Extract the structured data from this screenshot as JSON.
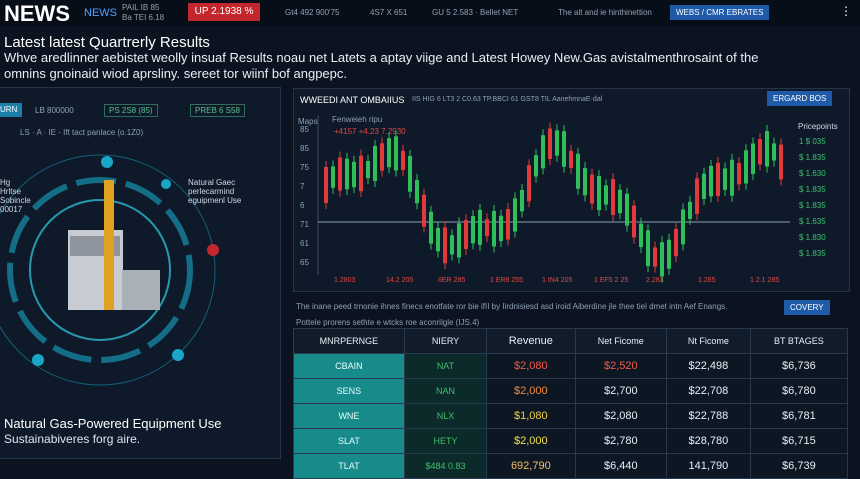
{
  "header": {
    "logo": "NEWS",
    "nav": "NEWS",
    "tickers": [
      "PAIL IB 85",
      "Ba TEI 6.18",
      "Gt4 492 900'75",
      "4S7 X 651",
      "GU 5 2.583 · Bellet NET",
      "The alt and ie hinthinettion"
    ],
    "alert": "UP 2.1938 %",
    "button": "WEBS / CMR EBRATES"
  },
  "headline": {
    "title": "Latest latest Quartrerly Results",
    "lines": [
      "Whve aredlinner aebistet weolly insuaf Results noau net Latets a aptay viige and Latest Howey New.Gas avistalmenthrosaint of the",
      "omnins gnoinaid wiod aprsliny. sereet tor wiinf bof angpepc."
    ]
  },
  "left_panel": {
    "tabs": [
      "URN",
      "LB 800000",
      "PS 2S8 (85)",
      "PREB 6 S58"
    ],
    "info": "LS · A · IE · Ift tact panlace (o.1Z0)",
    "callouts": [
      "Natural Gaec perlecarmind eguipmenl Use",
      "Hg Hrltse Sobincle 00017"
    ],
    "caption": "Natural Gas-Powered Equipment Use",
    "subcaption": "Sustainabiveres forg aire."
  },
  "chart_panel": {
    "title": "WWEEDI ANT OMBAIIUS",
    "info": "IIS HIG 6 LT3 2 C0.63 TP.BBCI 61 GST8 TIL AanehmnaE·dal",
    "button": "ERGARD BOS",
    "axis_title": "Maps",
    "legend": "Fenweieh ripu",
    "legend_values": "+4157 +4.23 7.2930",
    "y_labels": [
      "85",
      "85",
      "75",
      "7",
      "6",
      "71",
      "61",
      "65"
    ],
    "x_labels": [
      "1.2803",
      "14.2 205",
      "IIER 285",
      "1 ER8 255",
      "1 IN4 205",
      "1 EF5 2 25",
      "2.283",
      "1.285",
      "1 2.1 285"
    ],
    "side_title": "Pricepoints",
    "side_labels": [
      "1 $ 035",
      "$ 1.835",
      "$ 1.630",
      "$ 1.835",
      "$ 1.835",
      "$ 1.635",
      "$ 1.830",
      "$ 1.835"
    ],
    "note": "The inane peed trnonie ihnes finecs enotfate ror bie ifII by Iirdnisiesd asd iroid Aiberdine jle thee tiel dmet intn Aef Enangs.",
    "note2": "Pottele prorens sethte e wtcks roe aconrilgle (IJS.4)",
    "note_button": "COVERY"
  },
  "table": {
    "columns": [
      "MNRPERNGE",
      "NIERY",
      "Revenue",
      "Net Ficome",
      "Nt Ficome",
      "BT BTAGES"
    ],
    "rows": [
      [
        "CBAIN",
        "NAT",
        "$2,080",
        "$2,520",
        "$22,498",
        "$6,736"
      ],
      [
        "SENS",
        "NAN",
        "$2,000",
        "$2,700",
        "$22,708",
        "$6,780"
      ],
      [
        "WNE",
        "NLX",
        "$1,080",
        "$2,080",
        "$22,788",
        "$6,781"
      ],
      [
        "SLAT",
        "HETY",
        "$2,000",
        "$2,780",
        "$28,780",
        "$6,715"
      ],
      [
        "TLAT",
        "$484 0.83",
        "692,790",
        "$6,440",
        "141,790",
        "$6,739"
      ]
    ]
  }
}
